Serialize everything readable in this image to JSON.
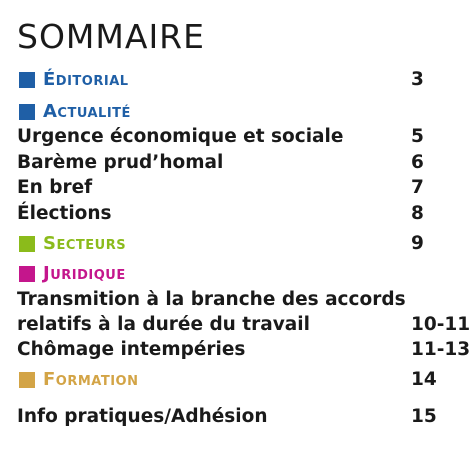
{
  "title": "SOMMAIRE",
  "colors": {
    "editorial": "#1f5fa6",
    "actualite": "#1f5fa6",
    "secteurs": "#8bbb1b",
    "juridique": "#c4168c",
    "formation": "#d3a446",
    "text": "#1a1a1a"
  },
  "editorial": {
    "label": "Éditorial",
    "page": "3"
  },
  "actualite": {
    "label": "Actualité",
    "items": [
      {
        "text": "Urgence économique et sociale",
        "page": "5"
      },
      {
        "text": "Barème prud’homal",
        "page": "6"
      },
      {
        "text": "En bref",
        "page": "7"
      },
      {
        "text": "Élections",
        "page": "8"
      }
    ]
  },
  "secteurs": {
    "label": "Secteurs",
    "page": "9"
  },
  "juridique": {
    "label": "Juridique",
    "items": [
      {
        "line1": "Transmition à la branche des accords",
        "line2": "relatifs à la durée du travail",
        "page": "10-11"
      },
      {
        "text": "Chômage intempéries",
        "page": "11-13"
      }
    ]
  },
  "formation": {
    "label": "Formation",
    "page": "14"
  },
  "info": {
    "text": "Info pratiques/Adhésion",
    "page": "15"
  }
}
